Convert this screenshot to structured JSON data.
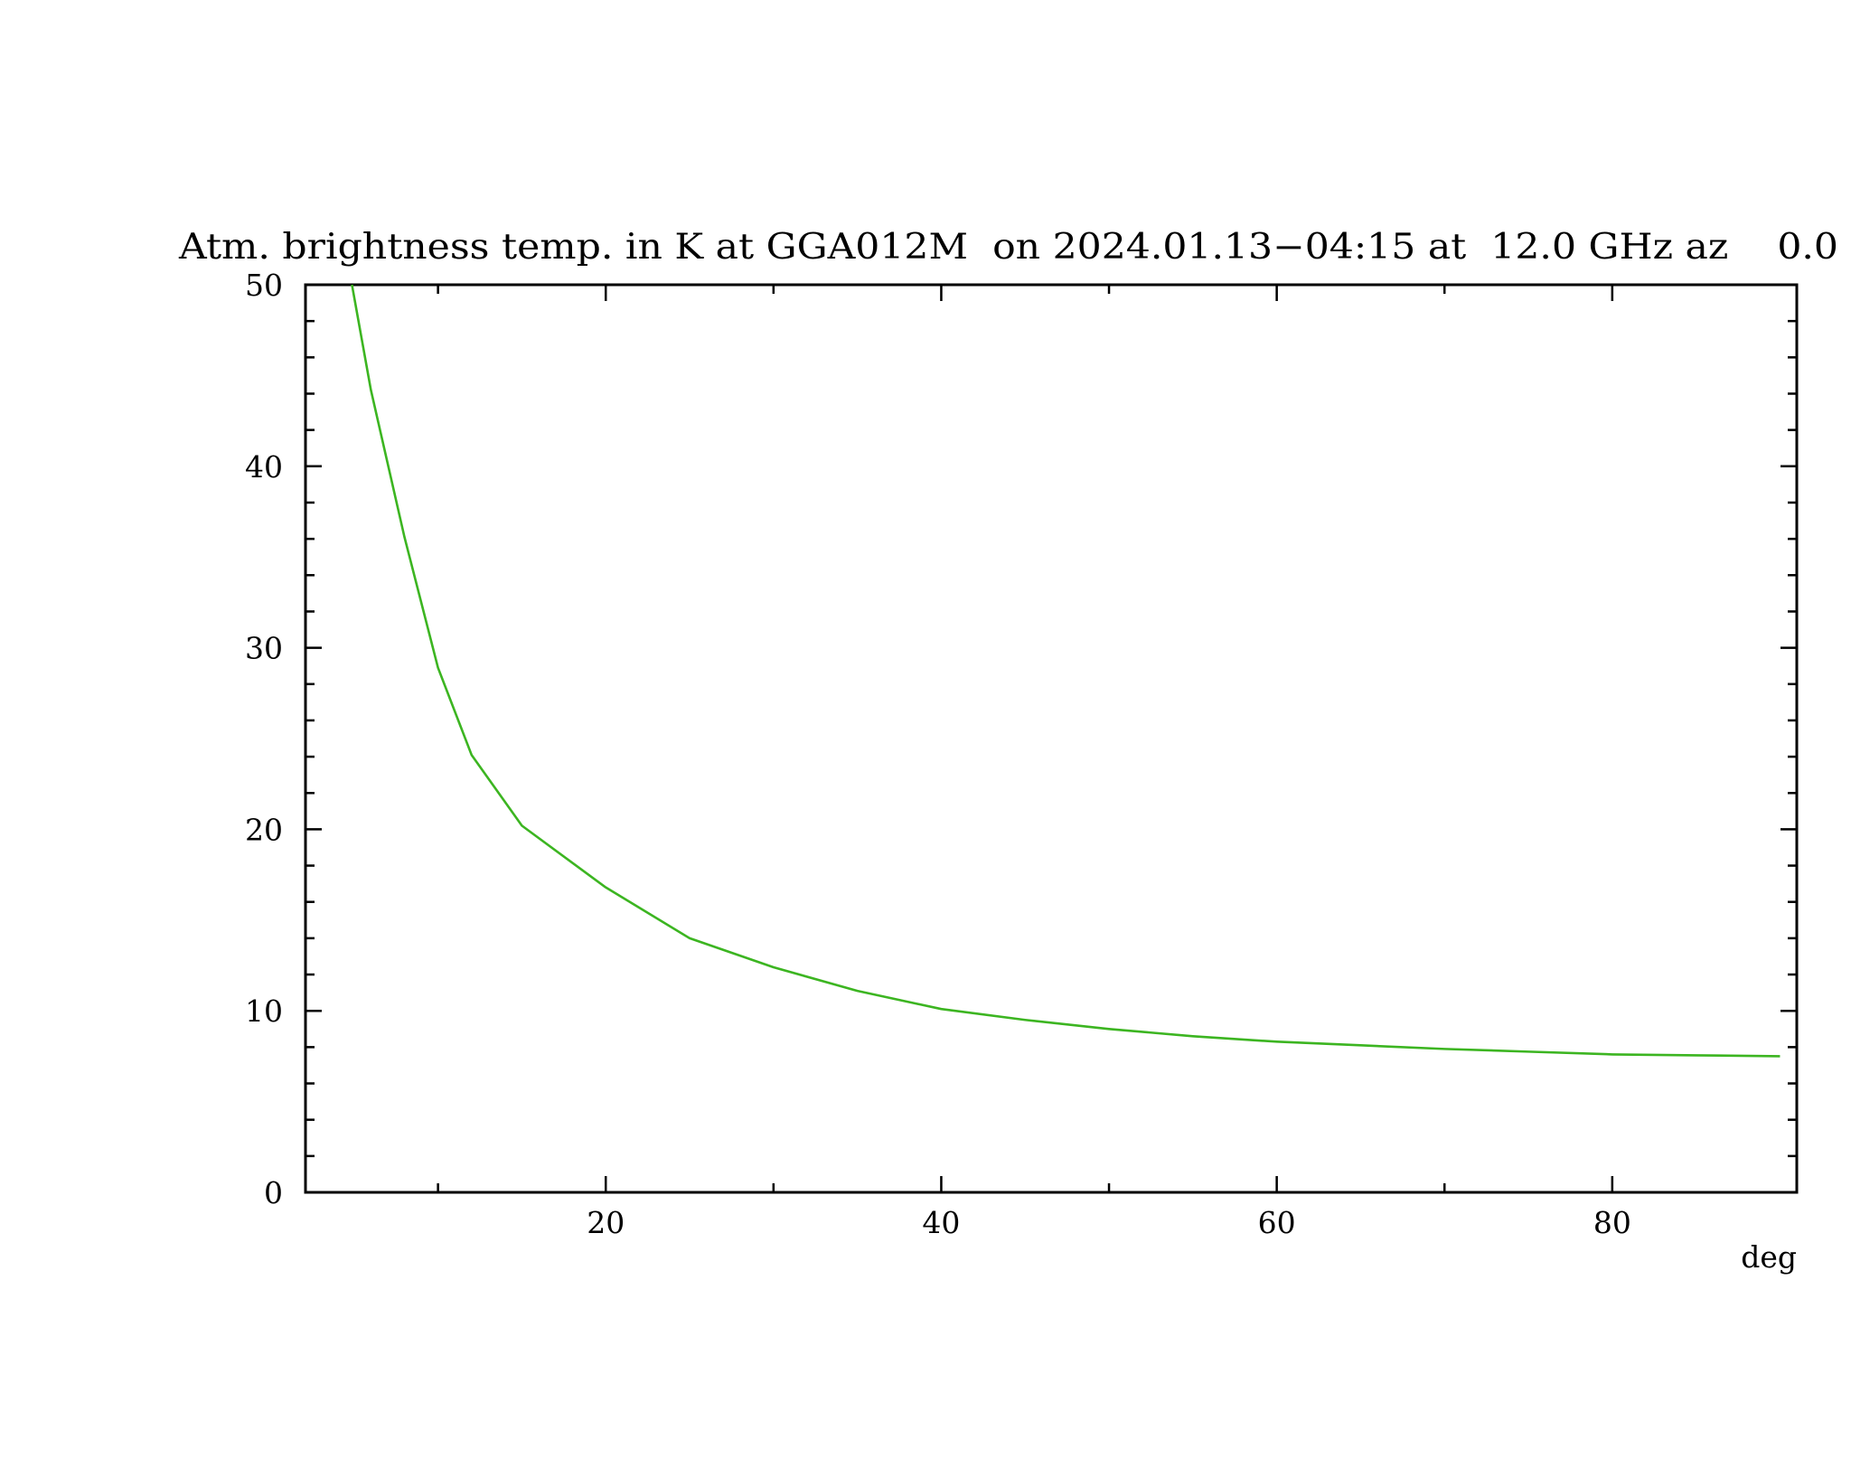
{
  "chart_data": {
    "type": "line",
    "title": "Atm. brightness temp. in K at GGA012M  on 2024.01.13−04:15 at  12.0 GHz az    0.0",
    "xlabel": "deg",
    "x": [
      4.87,
      6,
      8,
      10,
      12,
      15,
      20,
      25,
      30,
      35,
      40,
      45,
      50,
      55,
      60,
      65,
      70,
      75,
      80,
      85,
      90
    ],
    "series": [
      {
        "color": "#3cb521",
        "values": [
          50,
          44.2,
          36.1,
          28.9,
          24.1,
          20.2,
          16.8,
          14.0,
          12.4,
          11.1,
          10.1,
          9.5,
          9.0,
          8.6,
          8.3,
          8.1,
          7.9,
          7.75,
          7.6,
          7.55,
          7.5
        ]
      }
    ],
    "xlim": [
      2.1,
      91
    ],
    "xticks": [
      20,
      40,
      60,
      80
    ],
    "xticks_minor": [
      10,
      30,
      50,
      70
    ],
    "ylim": [
      0,
      50
    ],
    "yticks": [
      0,
      10,
      20,
      30,
      40,
      50
    ],
    "yticks_minor": [
      2,
      4,
      6,
      8,
      12,
      14,
      16,
      18,
      22,
      24,
      26,
      28,
      32,
      34,
      36,
      38,
      42,
      44,
      46,
      48
    ]
  }
}
